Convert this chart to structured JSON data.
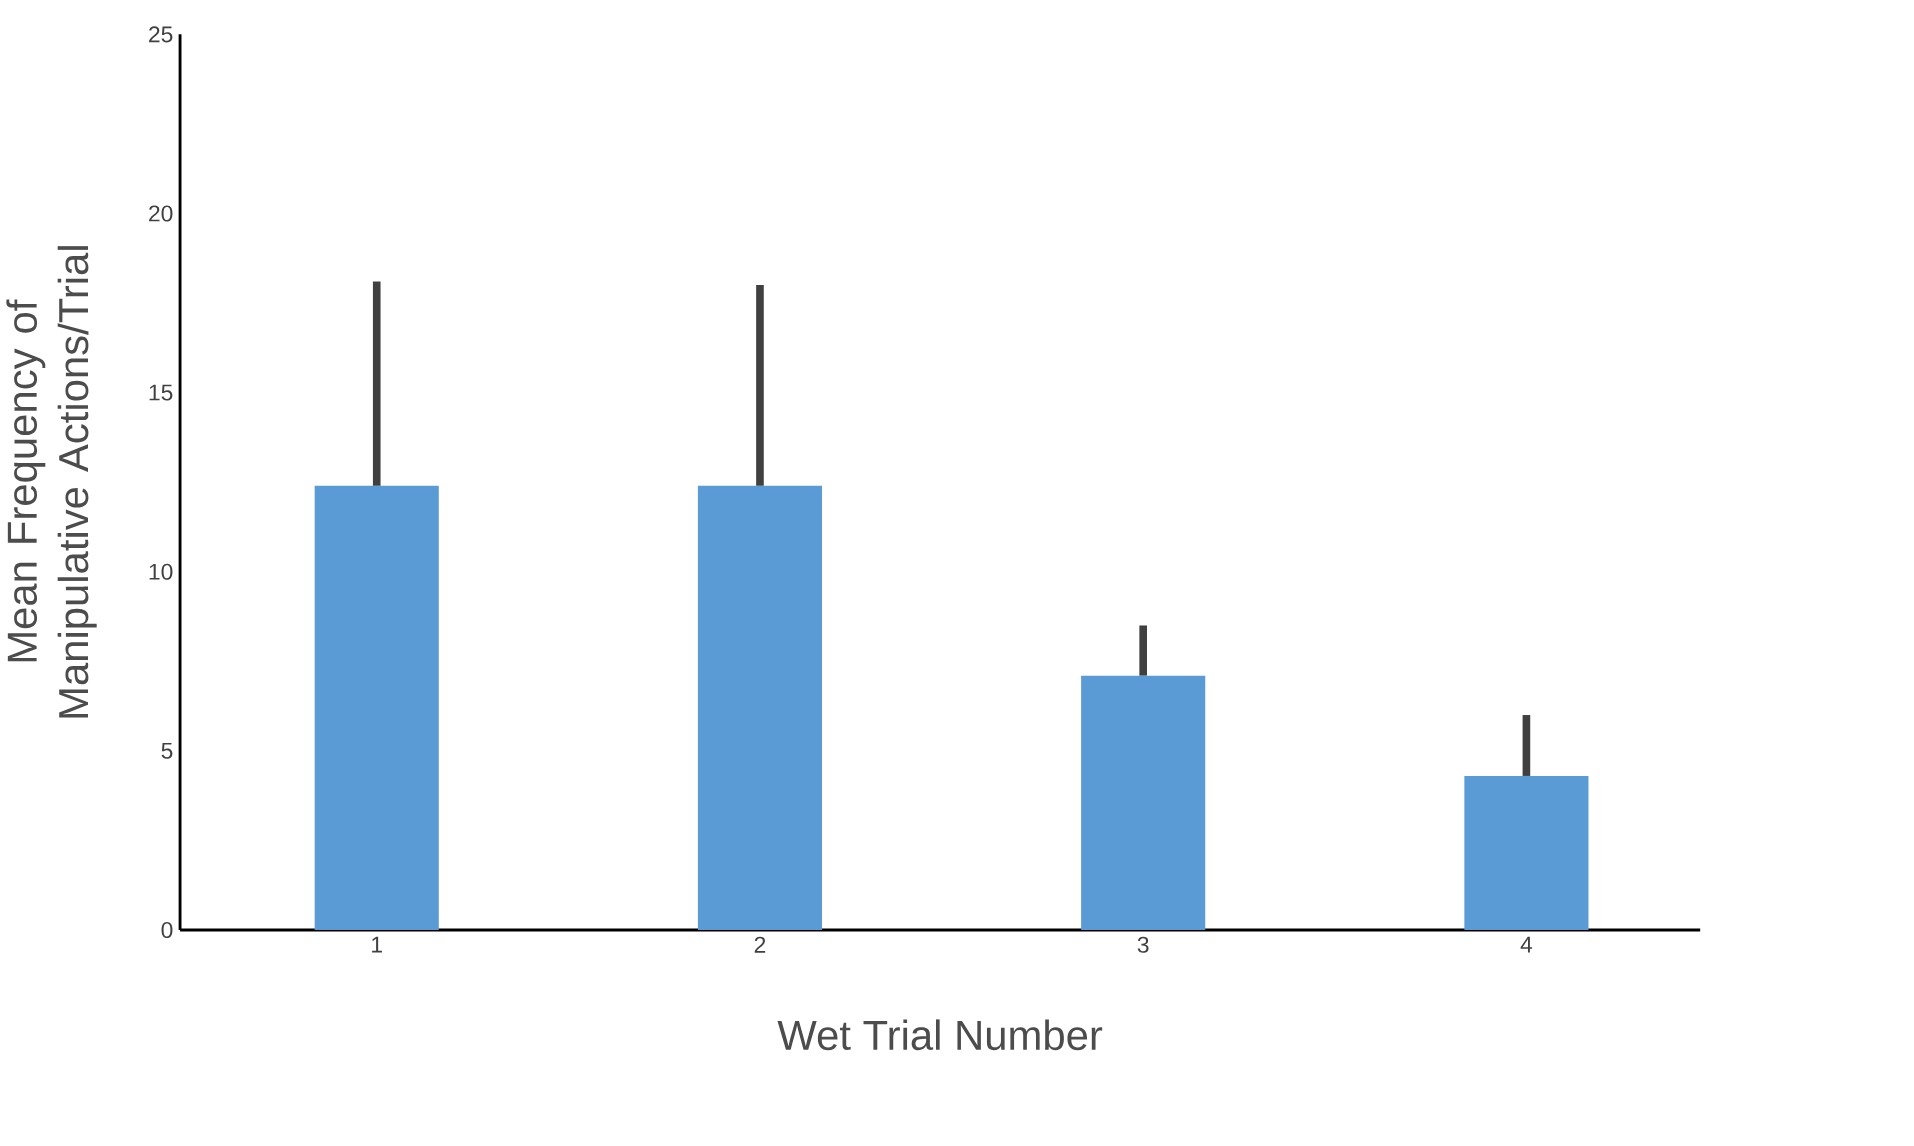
{
  "chart_data": {
    "type": "bar",
    "xlabel": "Wet Trial Number",
    "ylabel": "Mean Frequency of Manipulative Actions/Trial",
    "categories": [
      "1",
      "2",
      "3",
      "4"
    ],
    "values": [
      12.4,
      12.4,
      7.1,
      4.3
    ],
    "errors": [
      [
        12.4,
        18.1
      ],
      [
        12.4,
        18.0
      ],
      [
        7.1,
        8.5
      ],
      [
        4.3,
        6.0
      ]
    ],
    "color": "#5b9bd5",
    "ylim": [
      0,
      25
    ],
    "yticks": [
      0,
      5,
      10,
      15,
      20,
      25
    ],
    "grid": false
  }
}
